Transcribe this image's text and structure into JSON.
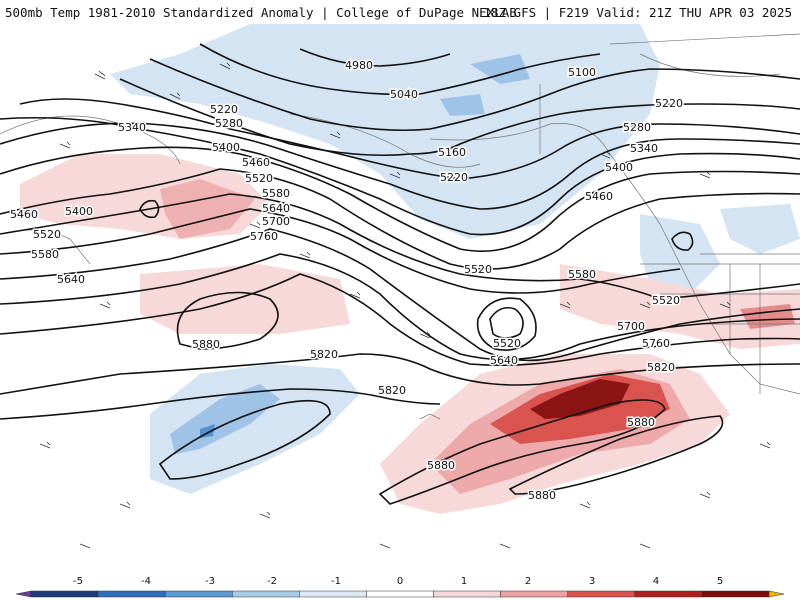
{
  "header": {
    "title_left": "500mb Temp 1981-2010 Standardized Anomaly | College of DuPage NEXLAB",
    "title_right": "18Z GFS | F219 Valid: 21Z THU APR 03 2025"
  },
  "map": {
    "contour_labels": [
      "4980",
      "5040",
      "5100",
      "5160",
      "5220",
      "5280",
      "5340",
      "5400",
      "5460",
      "5520",
      "5580",
      "5640",
      "5700",
      "5760",
      "5820",
      "5880"
    ],
    "label_instances": [
      {
        "text": "4980",
        "id": "l4980"
      },
      {
        "text": "5040",
        "id": "l5040"
      },
      {
        "text": "5100",
        "id": "l5100"
      },
      {
        "text": "5160",
        "id": "l5160"
      },
      {
        "text": "5220",
        "id": "l5220a"
      },
      {
        "text": "5220",
        "id": "l5220b"
      },
      {
        "text": "5220",
        "id": "l5220c"
      },
      {
        "text": "5280",
        "id": "l5280a"
      },
      {
        "text": "5280",
        "id": "l5280b"
      },
      {
        "text": "5340",
        "id": "l5340a"
      },
      {
        "text": "5340",
        "id": "l5340b"
      },
      {
        "text": "5400",
        "id": "l5400a"
      },
      {
        "text": "5400",
        "id": "l5400b"
      },
      {
        "text": "5400",
        "id": "l5400c"
      },
      {
        "text": "5460",
        "id": "l5460a"
      },
      {
        "text": "5460",
        "id": "l5460b"
      },
      {
        "text": "5460",
        "id": "l5460c"
      },
      {
        "text": "5520",
        "id": "l5520a"
      },
      {
        "text": "5520",
        "id": "l5520b"
      },
      {
        "text": "5520",
        "id": "l5520c"
      },
      {
        "text": "5520",
        "id": "l5520d"
      },
      {
        "text": "5520",
        "id": "l5520e"
      },
      {
        "text": "5580",
        "id": "l5580a"
      },
      {
        "text": "5580",
        "id": "l5580b"
      },
      {
        "text": "5580",
        "id": "l5580c"
      },
      {
        "text": "5640",
        "id": "l5640a"
      },
      {
        "text": "5640",
        "id": "l5640b"
      },
      {
        "text": "5640",
        "id": "l5640c"
      },
      {
        "text": "5700",
        "id": "l5700a"
      },
      {
        "text": "5700",
        "id": "l5700b"
      },
      {
        "text": "5760",
        "id": "l5760a"
      },
      {
        "text": "5760",
        "id": "l5760b"
      },
      {
        "text": "5820",
        "id": "l5820a"
      },
      {
        "text": "5820",
        "id": "l5820b"
      },
      {
        "text": "5820",
        "id": "l5820c"
      },
      {
        "text": "5880",
        "id": "l5880a"
      },
      {
        "text": "5880",
        "id": "l5880b"
      },
      {
        "text": "5880",
        "id": "l5880c"
      },
      {
        "text": "5880",
        "id": "l5880d"
      }
    ]
  },
  "colorbar": {
    "tick_labels": [
      "-5",
      "-4",
      "-3",
      "-2",
      "-1",
      "0",
      "1",
      "2",
      "3",
      "4",
      "5"
    ],
    "colors": [
      "#6a3d9a",
      "#1f3d7a",
      "#2f6fb8",
      "#5b9bd5",
      "#a9c9e8",
      "#dce9f5",
      "#ffffff",
      "#f6d7d7",
      "#eea3a3",
      "#d9534f",
      "#b71c1c",
      "#7a0c0c",
      "#f0b400"
    ]
  }
}
